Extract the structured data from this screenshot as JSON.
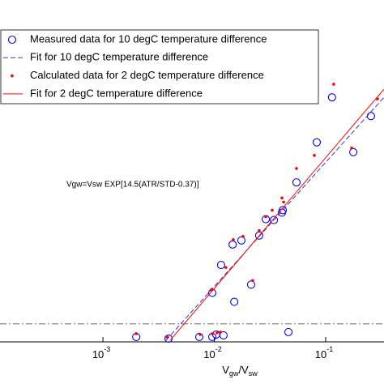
{
  "chart_data": {
    "type": "scatter",
    "x_scale": "log",
    "xlim": [
      0.000119,
      0.334
    ],
    "ylim": [
      -0.022,
      0.396
    ],
    "xticks": [
      {
        "value": 0.001,
        "label": "10",
        "exponent": "-3"
      },
      {
        "value": 0.01,
        "label": "10",
        "exponent": "-2"
      },
      {
        "value": 0.1,
        "label": "10",
        "exponent": "-1"
      }
    ],
    "xlabel_parts": [
      "V",
      "gw",
      "/V",
      "sw"
    ],
    "annotation": "Vgw=Vsw EXP[14.5(ATR/STD-0.37)]",
    "hline": 0,
    "series": [
      {
        "name": "Measured data for 10 degC temperature difference",
        "color": "#0000ff",
        "marker": "o",
        "linestyle": "none",
        "x": [
          0.00199,
          0.00388,
          0.00733,
          0.00959,
          0.0104,
          0.0121,
          0.00959,
          0.0151,
          0.0115,
          0.0146,
          0.0175,
          0.0214,
          0.0253,
          0.029,
          0.0343,
          0.0412,
          0.0405,
          0.0463,
          0.0547,
          0.0832,
          0.114,
          0.177,
          0.255
        ],
        "values": [
          -0.016,
          -0.018,
          -0.016,
          -0.016,
          -0.013,
          -0.014,
          0.038,
          0.027,
          0.072,
          0.097,
          0.102,
          0.048,
          0.108,
          0.128,
          0.127,
          0.139,
          0.136,
          -0.01,
          0.173,
          0.222,
          0.277,
          0.21,
          0.254
        ]
      },
      {
        "name": "Fit for 10 degC temperature difference",
        "color": "#3333cc",
        "marker": "none",
        "linestyle": "dashed",
        "x": [
          0.00369,
          0.334
        ],
        "values": [
          -0.02,
          0.277
        ]
      },
      {
        "name": "Calculated data for 2 degC temperature difference",
        "color": "#ff0000",
        "marker": ".",
        "linestyle": "none",
        "x": [
          0.00199,
          0.00376,
          0.00746,
          0.00959,
          0.0113,
          0.0106,
          0.0127,
          0.0148,
          0.0181,
          0.0221,
          0.0253,
          0.029,
          0.0331,
          0.0405,
          0.0419,
          0.0547,
          0.0791,
          0.118,
          0.171,
          0.292,
          0.00944
        ],
        "values": [
          -0.012,
          -0.016,
          -0.013,
          -0.012,
          -0.01,
          -0.011,
          0.069,
          0.103,
          0.107,
          0.053,
          0.114,
          0.131,
          0.139,
          0.154,
          0.149,
          0.19,
          0.206,
          0.293,
          0.215,
          0.275,
          0.042
        ]
      },
      {
        "name": "Fit for 2 degC temperature difference",
        "color": "#ff0000",
        "marker": "none",
        "linestyle": "solid",
        "x": [
          0.00402,
          0.334
        ],
        "values": [
          -0.02,
          0.287
        ]
      }
    ]
  }
}
